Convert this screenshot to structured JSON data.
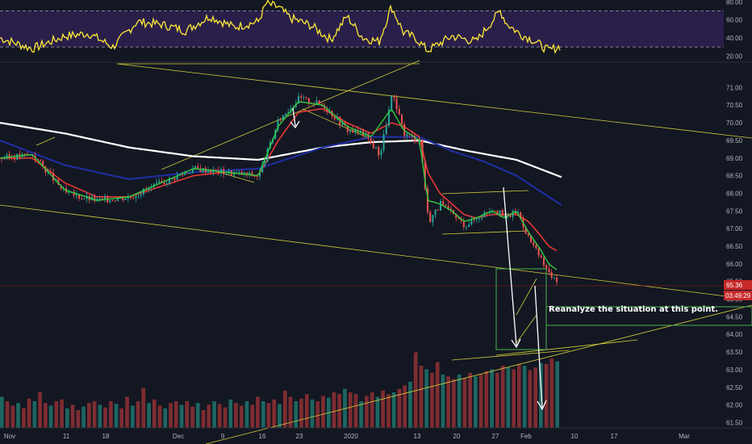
{
  "chart_data": [
    {
      "type": "line",
      "panel": "rsi",
      "ylim": [
        15,
        82
      ],
      "y_ticks": [
        "80.00",
        "60.00",
        "40.00",
        "20.00"
      ],
      "bands": [
        70,
        30
      ],
      "colors": {
        "line": "#ffe936",
        "band_fill": "#2a1f4a",
        "band_line": "#8a8f99"
      },
      "series": [
        {
          "x": [
            0,
            40,
            80,
            110,
            140,
            170,
            200,
            230,
            260,
            290,
            320,
            330,
            345,
            360,
            385,
            410,
            430,
            450,
            470,
            485,
            500,
            515,
            530,
            560,
            590,
            620,
            628,
            645,
            660,
            680,
            695
          ],
          "values": [
            40,
            28,
            42,
            45,
            30,
            58,
            55,
            48,
            64,
            52,
            58,
            78,
            74,
            62,
            54,
            38,
            64,
            40,
            36,
            75,
            46,
            40,
            26,
            42,
            36,
            70,
            56,
            44,
            38,
            26,
            31
          ]
        }
      ]
    },
    {
      "type": "candlestick",
      "panel": "price",
      "ylim": [
        61.35,
        71.65
      ],
      "y_ticks": [
        "71.00",
        "70.50",
        "70.00",
        "69.50",
        "69.00",
        "68.50",
        "68.00",
        "67.50",
        "67.00",
        "66.50",
        "66.00",
        "65.50",
        "65.00",
        "64.50",
        "64.00",
        "63.50",
        "63.00",
        "62.50",
        "62.00",
        "61.50"
      ],
      "x_ticks": [
        {
          "label": "Nov",
          "pos": 12
        },
        {
          "label": "11",
          "pos": 82
        },
        {
          "label": "18",
          "pos": 131
        },
        {
          "label": "Dec",
          "pos": 221
        },
        {
          "label": "9",
          "pos": 276
        },
        {
          "label": "16",
          "pos": 325
        },
        {
          "label": "23",
          "pos": 371
        },
        {
          "label": "2020",
          "pos": 435
        },
        {
          "label": "13",
          "pos": 517
        },
        {
          "label": "20",
          "pos": 566
        },
        {
          "label": "27",
          "pos": 614
        },
        {
          "label": "Feb",
          "pos": 652
        },
        {
          "label": "10",
          "pos": 712
        },
        {
          "label": "17",
          "pos": 761
        },
        {
          "label": "Mar",
          "pos": 848
        }
      ],
      "anchors": {
        "x": [
          0,
          40,
          80,
          120,
          160,
          200,
          240,
          280,
          320,
          345,
          370,
          400,
          430,
          450,
          470,
          485,
          500,
          520,
          530,
          545,
          560,
          575,
          590,
          610,
          625,
          640,
          655,
          670,
          680,
          692
        ],
        "close": [
          69.0,
          69.1,
          68.0,
          67.8,
          67.9,
          68.3,
          68.7,
          68.6,
          68.5,
          70.1,
          70.7,
          70.5,
          69.8,
          69.7,
          69.1,
          70.8,
          69.7,
          69.5,
          67.2,
          67.7,
          67.4,
          67.1,
          67.3,
          67.6,
          67.3,
          67.5,
          66.7,
          66.1,
          65.7,
          65.4
        ]
      },
      "last_price": "65.36",
      "countdown": "03:49:29",
      "ma_white": {
        "x": [
          0,
          80,
          160,
          240,
          320,
          400,
          460,
          520,
          580,
          640,
          697
        ],
        "values": [
          70.0,
          69.7,
          69.3,
          69.05,
          68.95,
          69.3,
          69.45,
          69.5,
          69.2,
          68.95,
          68.45
        ]
      },
      "ma_blue": {
        "x": [
          0,
          80,
          160,
          240,
          320,
          400,
          460,
          520,
          560,
          600,
          640,
          697
        ],
        "values": [
          69.5,
          68.8,
          68.4,
          68.6,
          68.7,
          69.3,
          69.6,
          69.6,
          69.2,
          68.9,
          68.5,
          67.65
        ]
      },
      "ma_red": {
        "x": [
          0,
          40,
          80,
          120,
          160,
          200,
          240,
          280,
          320,
          345,
          370,
          400,
          430,
          460,
          485,
          500,
          520,
          530,
          545,
          560,
          575,
          590,
          610,
          625,
          640,
          655,
          670,
          680,
          692
        ],
        "values": [
          69.0,
          69.0,
          68.3,
          67.9,
          67.9,
          68.2,
          68.5,
          68.6,
          68.5,
          69.5,
          70.3,
          70.4,
          70.0,
          69.7,
          70.0,
          69.9,
          69.6,
          68.6,
          68.0,
          67.7,
          67.4,
          67.3,
          67.4,
          67.4,
          67.4,
          67.2,
          66.8,
          66.5,
          66.35
        ]
      },
      "ma_green": {
        "x": [
          0,
          40,
          80,
          120,
          160,
          200,
          240,
          280,
          320,
          345,
          370,
          400,
          430,
          460,
          485,
          500,
          520,
          530,
          545,
          560,
          575,
          590,
          610,
          625,
          640,
          655,
          670,
          680,
          692
        ],
        "values": [
          69.0,
          69.1,
          68.1,
          67.8,
          67.9,
          68.3,
          68.7,
          68.6,
          68.5,
          69.9,
          70.6,
          70.5,
          69.9,
          69.6,
          70.4,
          69.8,
          69.5,
          67.8,
          67.7,
          67.5,
          67.2,
          67.3,
          67.5,
          67.3,
          67.5,
          66.9,
          66.4,
          66.0,
          65.8
        ]
      },
      "annotation": "Reanalyze the situation at this point.",
      "colors": {
        "up": "#26a69a",
        "down": "#ef5350",
        "trend": "#d1cd3a",
        "box": "#4caf50",
        "arrow": "#ffffff",
        "price_tag": "#c62828"
      }
    },
    {
      "type": "bar",
      "panel": "volume",
      "note": "relative volume heights (0-1)",
      "values": [
        0.35,
        0.3,
        0.25,
        0.28,
        0.22,
        0.33,
        0.3,
        0.4,
        0.28,
        0.25,
        0.3,
        0.32,
        0.22,
        0.26,
        0.2,
        0.24,
        0.28,
        0.3,
        0.26,
        0.23,
        0.3,
        0.27,
        0.22,
        0.35,
        0.25,
        0.3,
        0.45,
        0.28,
        0.32,
        0.25,
        0.22,
        0.28,
        0.3,
        0.26,
        0.3,
        0.24,
        0.28,
        0.2,
        0.26,
        0.3,
        0.27,
        0.23,
        0.32,
        0.28,
        0.25,
        0.3,
        0.26,
        0.35,
        0.3,
        0.28,
        0.32,
        0.27,
        0.42,
        0.35,
        0.3,
        0.33,
        0.38,
        0.32,
        0.3,
        0.36,
        0.34,
        0.4,
        0.38,
        0.44,
        0.4,
        0.38,
        0.3,
        0.36,
        0.4,
        0.35,
        0.42,
        0.38,
        0.4,
        0.44,
        0.48,
        0.52,
        0.85,
        0.7,
        0.66,
        0.62,
        0.74,
        0.6,
        0.58,
        0.55,
        0.6,
        0.56,
        0.62,
        0.58,
        0.6,
        0.64,
        0.66,
        0.62,
        0.7,
        0.68,
        0.66,
        0.72,
        0.7,
        0.65,
        0.68,
        0.73,
        0.72,
        0.78,
        0.75
      ]
    }
  ]
}
